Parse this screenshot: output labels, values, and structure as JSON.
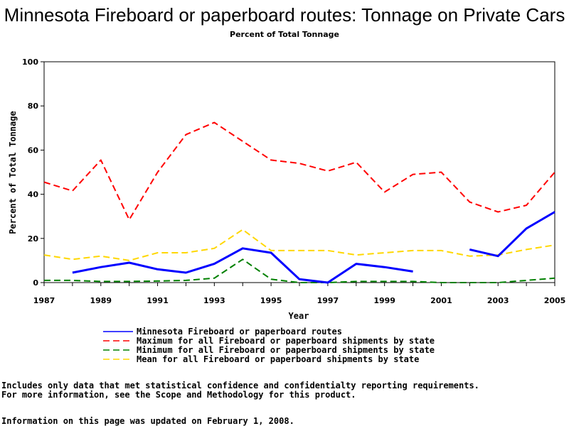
{
  "chart_data": {
    "type": "line",
    "title": "Minnesota Fireboard or paperboard routes: Tonnage on Private Cars",
    "subtitle": "Percent of Total Tonnage",
    "xlabel": "Year",
    "ylabel": "Percent of Total Tonnage",
    "xlim": [
      1987,
      2005
    ],
    "ylim": [
      0,
      100
    ],
    "x_ticks": [
      "1987",
      "1989",
      "1991",
      "1993",
      "1995",
      "1997",
      "1999",
      "2001",
      "2003",
      "2005"
    ],
    "y_ticks": [
      "0",
      "20",
      "40",
      "60",
      "80",
      "100"
    ],
    "grid": false,
    "legend_position": "bottom",
    "x": [
      1987,
      1988,
      1989,
      1990,
      1991,
      1992,
      1993,
      1994,
      1995,
      1996,
      1997,
      1998,
      1999,
      2000,
      2001,
      2002,
      2003,
      2004,
      2005
    ],
    "series": [
      {
        "name": "Minnesota Fireboard or paperboard routes",
        "color": "#0000ff",
        "style": "solid",
        "values": [
          null,
          4.5,
          7,
          9,
          6,
          4.5,
          8.5,
          15.5,
          13.5,
          1.5,
          0,
          8.5,
          7,
          5,
          null,
          15,
          12,
          24.5,
          32
        ]
      },
      {
        "name": "Maximum for all Fireboard or paperboard shipments by state",
        "color": "#ff0000",
        "style": "dashed",
        "values": [
          45.5,
          41.5,
          55.5,
          28.5,
          50,
          67,
          72.5,
          64,
          55.5,
          54,
          50.5,
          54.5,
          41,
          49,
          50,
          36.5,
          32,
          35,
          50
        ]
      },
      {
        "name": "Minimum for all Fireboard or paperboard shipments by state",
        "color": "#008000",
        "style": "dashed",
        "values": [
          1,
          1,
          0.5,
          0.5,
          0.7,
          1,
          2,
          10.5,
          1.5,
          0,
          0,
          0.5,
          0.5,
          0.5,
          0,
          0,
          0,
          1,
          2
        ]
      },
      {
        "name": "Mean for all Fireboard or paperboard shipments by state",
        "color": "#ffd700",
        "style": "dashed",
        "values": [
          12.5,
          10.5,
          12,
          10,
          13.5,
          13.5,
          15.5,
          24,
          14.5,
          14.5,
          14.5,
          12.5,
          13.5,
          14.5,
          14.5,
          12,
          12.5,
          15,
          17
        ]
      }
    ]
  },
  "notes": {
    "line1": "Includes only data that met statistical confidence and confidentialty reporting requirements.",
    "line2": "For more information, see the Scope and Methodology for this product.",
    "line3": "Information on this page was updated on February 1, 2008."
  }
}
